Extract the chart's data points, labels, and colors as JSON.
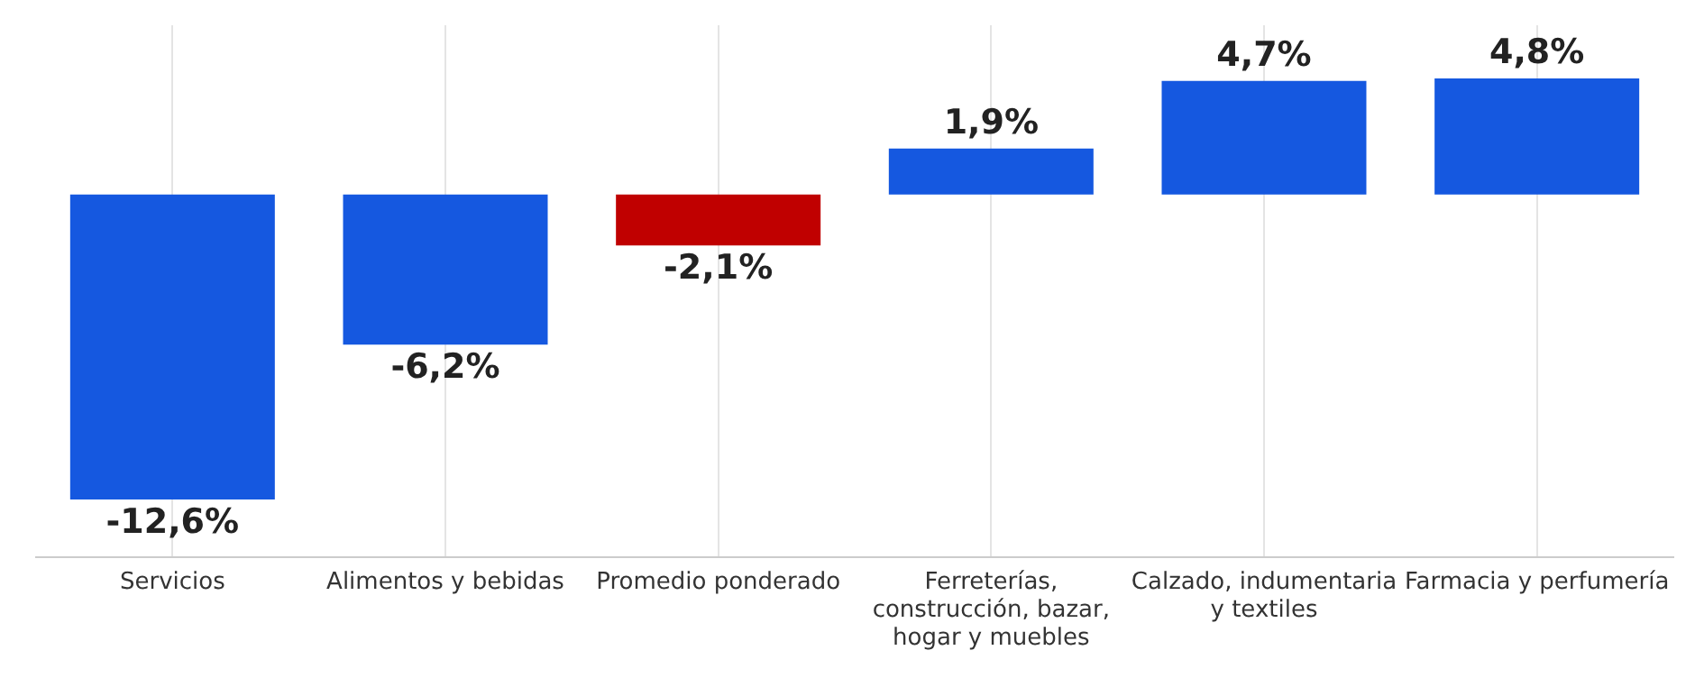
{
  "chart_data": {
    "type": "bar",
    "categories": [
      "Servicios",
      "Alimentos y bebidas",
      "Promedio ponderado",
      "Ferreterías, construcción, bazar, hogar y muebles",
      "Calzado, indumentaria y textiles",
      "Farmacia y perfumería"
    ],
    "values": [
      -12.6,
      -6.2,
      -2.1,
      1.9,
      4.7,
      4.8
    ],
    "colors": [
      "#1558e0",
      "#1558e0",
      "#c00000",
      "#1558e0",
      "#1558e0",
      "#1558e0"
    ],
    "value_labels": [
      "-12,6%",
      "-6,2%",
      "-2,1%",
      "1,9%",
      "4,7%",
      "4,8%"
    ],
    "ylim": [
      -15,
      7
    ],
    "grid": "x",
    "tick_labels": "x",
    "legend": false
  }
}
